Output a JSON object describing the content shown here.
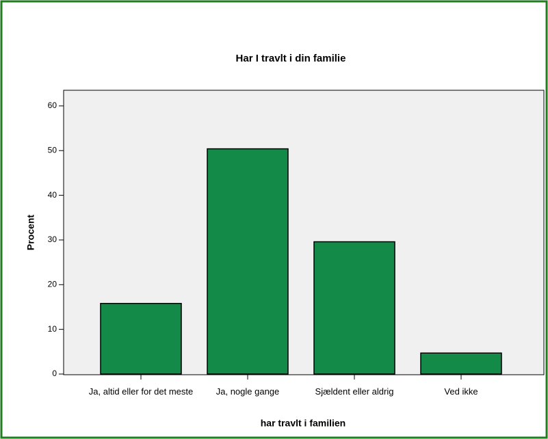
{
  "chart_data": {
    "type": "bar",
    "title": "Har I travlt i din familie",
    "x_label": "har travlt i familien",
    "y_label": "Procent",
    "categories": [
      "Ja, altid eller for det meste",
      "Ja, nogle gange",
      "Sjældent eller aldrig",
      "Ved ikke"
    ],
    "values": [
      15.8,
      50.4,
      29.6,
      4.7
    ],
    "color": "#138a48",
    "ylim": [
      0,
      63.5
    ],
    "yticks": [
      0,
      10,
      20,
      30,
      40,
      50,
      60
    ],
    "grid": false
  }
}
